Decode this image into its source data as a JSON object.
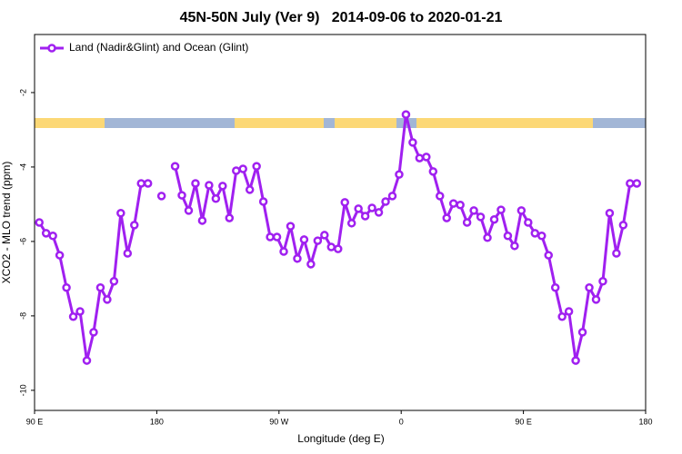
{
  "chart_data": {
    "type": "line",
    "title": "45N-50N July (Ver 9)   2014-09-06 to 2020-01-21",
    "xlabel": "Longitude (deg E)",
    "ylabel": "XCO2 - MLO trend (ppm)",
    "legend": "top-left",
    "x": [
      93.5,
      98.5,
      103.5,
      108.5,
      113.5,
      118.5,
      123.5,
      128.5,
      133.5,
      138.5,
      143.5,
      148.5,
      153.5,
      158.5,
      163.5,
      168.5,
      173.5,
      178.5,
      183.5,
      188.5,
      193.5,
      198.5,
      203.5,
      208.5,
      213.5,
      218.5,
      223.5,
      228.5,
      233.5,
      238.5,
      243.5,
      248.5,
      253.5,
      258.5,
      263.5,
      268.5,
      273.5,
      278.5,
      283.5,
      288.5,
      293.5,
      298.5,
      303.5,
      308.5,
      313.5,
      318.5,
      323.5,
      328.5,
      333.5,
      338.5,
      343.5,
      348.5,
      353.5,
      358.5,
      363.5,
      368.5,
      373.5,
      378.5,
      383.5,
      388.5,
      393.5,
      398.5,
      403.5,
      408.5,
      413.5,
      418.5,
      423.5,
      428.5,
      433.5,
      438.5,
      443.5,
      448.5,
      453.5,
      458.5,
      463.5,
      468.5,
      473.5,
      478.5,
      483.5,
      488.5,
      493.5,
      498.5,
      503.5,
      508.5,
      513.5,
      518.5,
      523.5,
      528.5,
      533.5
    ],
    "series": [
      {
        "name": "Land (Nadir&Glint) and Ocean (Glint)",
        "color": "#a020f0",
        "values": [
          -5.49,
          -5.78,
          -5.85,
          -6.37,
          -7.24,
          -8.02,
          -7.88,
          -9.2,
          -8.44,
          -7.24,
          -7.56,
          -7.07,
          -5.24,
          -6.32,
          -5.56,
          -4.44,
          -4.44,
          null,
          -4.78,
          null,
          -3.98,
          -4.76,
          -5.17,
          -4.44,
          -5.44,
          -4.49,
          -4.85,
          -4.51,
          -5.37,
          -4.1,
          -4.05,
          -4.61,
          -3.98,
          -4.93,
          -5.88,
          -5.88,
          -6.27,
          -5.59,
          -6.46,
          -5.95,
          -6.61,
          -5.98,
          -5.83,
          -6.15,
          -6.2,
          -4.95,
          -5.51,
          -5.12,
          -5.32,
          -5.1,
          -5.22,
          -4.93,
          -4.78,
          -4.2,
          -2.59,
          -3.34,
          -3.76,
          -3.73,
          -4.12,
          -4.78,
          -5.37,
          -4.98,
          -5.02,
          -5.49,
          -5.17,
          -5.34,
          -5.9,
          -5.41,
          -5.15,
          -5.85,
          -6.12,
          -5.17,
          -5.49,
          -5.78,
          -5.85,
          -6.37,
          -7.24,
          -8.02,
          -7.88,
          -9.2,
          -8.44,
          -7.24,
          -7.56,
          -7.07,
          -5.24,
          -6.32,
          -5.56,
          -4.44,
          -4.44
        ]
      }
    ],
    "xlim": [
      90,
      540
    ],
    "xticks": [
      {
        "value": 90,
        "label": "90 E"
      },
      {
        "value": 180,
        "label": "180"
      },
      {
        "value": 270,
        "label": "90 W"
      },
      {
        "value": 360,
        "label": "0"
      },
      {
        "value": 450,
        "label": "90 E"
      },
      {
        "value": 540,
        "label": "180"
      }
    ],
    "ylim": [
      -10.54,
      -0.44
    ],
    "yticks": [
      -2,
      -4,
      -6,
      -8,
      -10
    ]
  }
}
